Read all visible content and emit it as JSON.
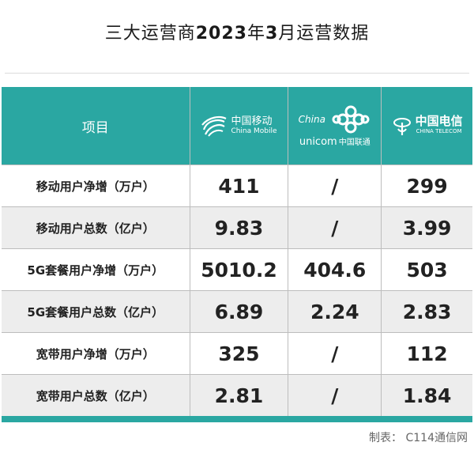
{
  "title": {
    "prefix": "三大运营商",
    "year": "2023",
    "mid": "年",
    "month": "3",
    "suffix": "月运营数据"
  },
  "header": {
    "item_label": "项目",
    "china_mobile": {
      "cn": "中国移动",
      "en": "China Mobile"
    },
    "china_unicom": {
      "en_top": "China",
      "en_bottom": "unicom",
      "cn": "中国联通"
    },
    "china_telecom": {
      "cn": "中国电信",
      "en": "CHINA TELECOM"
    }
  },
  "rows": [
    {
      "label": "移动用户净增（万户）",
      "mobile": "411",
      "unicom": "/",
      "telecom": "299"
    },
    {
      "label": "移动用户总数（亿户）",
      "mobile": "9.83",
      "unicom": "/",
      "telecom": "3.99"
    },
    {
      "label": "5G套餐用户净增（万户）",
      "mobile": "5010.2",
      "unicom": "404.6",
      "telecom": "503"
    },
    {
      "label": "5G套餐用户总数（亿户）",
      "mobile": "6.89",
      "unicom": "2.24",
      "telecom": "2.83"
    },
    {
      "label": "宽带用户净增（万户）",
      "mobile": "325",
      "unicom": "/",
      "telecom": "112"
    },
    {
      "label": "宽带用户总数（亿户）",
      "mobile": "2.81",
      "unicom": "/",
      "telecom": "1.84"
    }
  ],
  "footer": {
    "source": "制表：  C114通信网"
  },
  "colors": {
    "header_bg": "#2aa7a2",
    "stripe": "#ededed"
  }
}
